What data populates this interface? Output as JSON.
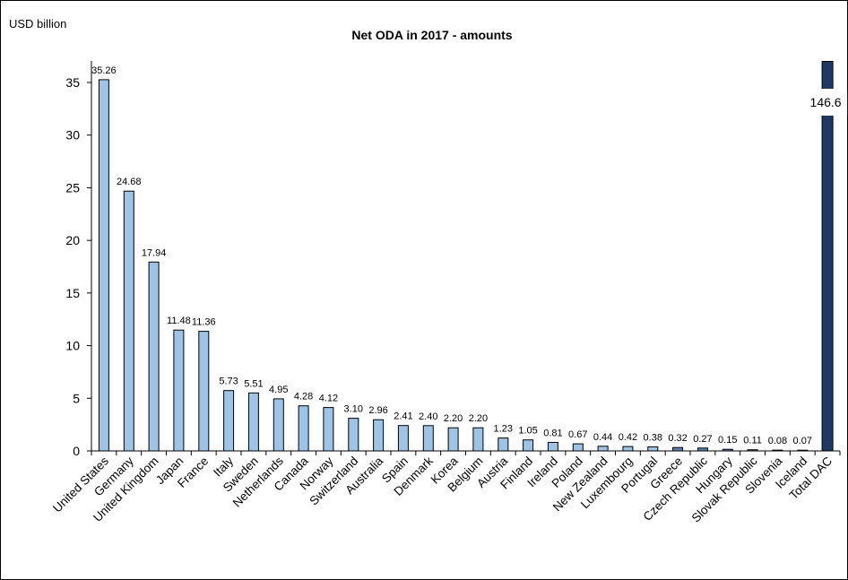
{
  "chart_data": {
    "type": "bar",
    "title": "Net ODA in 2017 - amounts",
    "ylabel": "USD billion",
    "xlabel": "",
    "ylim": [
      0,
      37
    ],
    "yticks": [
      0,
      5,
      10,
      15,
      20,
      25,
      30,
      35
    ],
    "grid": false,
    "categories": [
      "United States",
      "Germany",
      "United Kingdom",
      "Japan",
      "France",
      "Italy",
      "Sweden",
      "Netherlands",
      "Canada",
      "Norway",
      "Switzerland",
      "Australia",
      "Spain",
      "Denmark",
      "Korea",
      "Belgium",
      "Austria",
      "Finland",
      "Ireland",
      "Poland",
      "New Zealand",
      "Luxembourg",
      "Portugal",
      "Greece",
      "Czech Republic",
      "Hungary",
      "Slovak Republic",
      "Slovenia",
      "Iceland",
      "Total DAC"
    ],
    "values": [
      35.26,
      24.68,
      17.94,
      11.48,
      11.36,
      5.73,
      5.51,
      4.95,
      4.28,
      4.12,
      3.1,
      2.96,
      2.41,
      2.4,
      2.2,
      2.2,
      1.23,
      1.05,
      0.81,
      0.67,
      0.44,
      0.42,
      0.38,
      0.32,
      0.27,
      0.15,
      0.11,
      0.08,
      0.07,
      146.6
    ],
    "data_labels": [
      "35.26",
      "24.68",
      "17.94",
      "11.48",
      "11.36",
      "5.73",
      "5.51",
      "4.95",
      "4.28",
      "4.12",
      "3.10",
      "2.96",
      "2.41",
      "2.40",
      "2.20",
      "2.20",
      "1.23",
      "1.05",
      "0.81",
      "0.67",
      "0.44",
      "0.42",
      "0.38",
      "0.32",
      "0.27",
      "0.15",
      "0.11",
      "0.08",
      "0.07",
      "146.6"
    ],
    "colors": {
      "bar": "#9dc3e6",
      "total_bar": "#1f3864",
      "outline": "#000000"
    }
  }
}
